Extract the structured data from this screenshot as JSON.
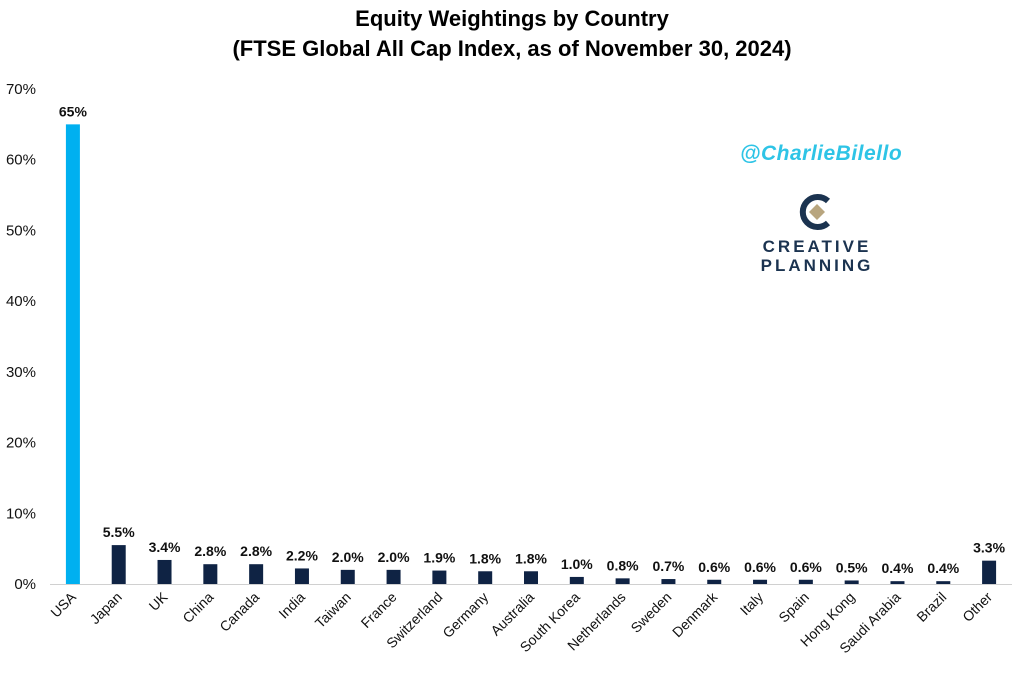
{
  "chart_data": {
    "type": "bar",
    "title": "Equity Weightings by Country",
    "subtitle": "(FTSE Global All Cap Index, as of November 30, 2024)",
    "categories": [
      "USA",
      "Japan",
      "UK",
      "China",
      "Canada",
      "India",
      "Taiwan",
      "France",
      "Switzerland",
      "Germany",
      "Australia",
      "South Korea",
      "Netherlands",
      "Sweden",
      "Denmark",
      "Italy",
      "Spain",
      "Hong Kong",
      "Saudi Arabia",
      "Brazil",
      "Other"
    ],
    "values": [
      65,
      5.5,
      3.4,
      2.8,
      2.8,
      2.2,
      2.0,
      2.0,
      1.9,
      1.8,
      1.8,
      1.0,
      0.8,
      0.7,
      0.6,
      0.6,
      0.6,
      0.5,
      0.4,
      0.4,
      3.3
    ],
    "data_labels": [
      "65%",
      "5.5%",
      "3.4%",
      "2.8%",
      "2.8%",
      "2.2%",
      "2.0%",
      "2.0%",
      "1.9%",
      "1.8%",
      "1.8%",
      "1.0%",
      "0.8%",
      "0.7%",
      "0.6%",
      "0.6%",
      "0.6%",
      "0.5%",
      "0.4%",
      "0.4%",
      "3.3%"
    ],
    "ylim": [
      0,
      70
    ],
    "yticks": [
      0,
      10,
      20,
      30,
      40,
      50,
      60,
      70
    ],
    "ytick_labels": [
      "0%",
      "10%",
      "20%",
      "30%",
      "40%",
      "50%",
      "60%",
      "70%"
    ],
    "xlabel": "",
    "ylabel": "",
    "grid": false,
    "colors": {
      "highlight": "#00b0f0",
      "default": "#0f2344"
    }
  },
  "watermark": {
    "handle": "@CharlieBilello",
    "logo_text_line1": "CREATIVE",
    "logo_text_line2": "PLANNING",
    "logo_icon": "creative-planning-c-icon",
    "handle_color": "#2ec4e6",
    "logo_color": "#1b3350",
    "logo_accent": "#b8a57e"
  }
}
